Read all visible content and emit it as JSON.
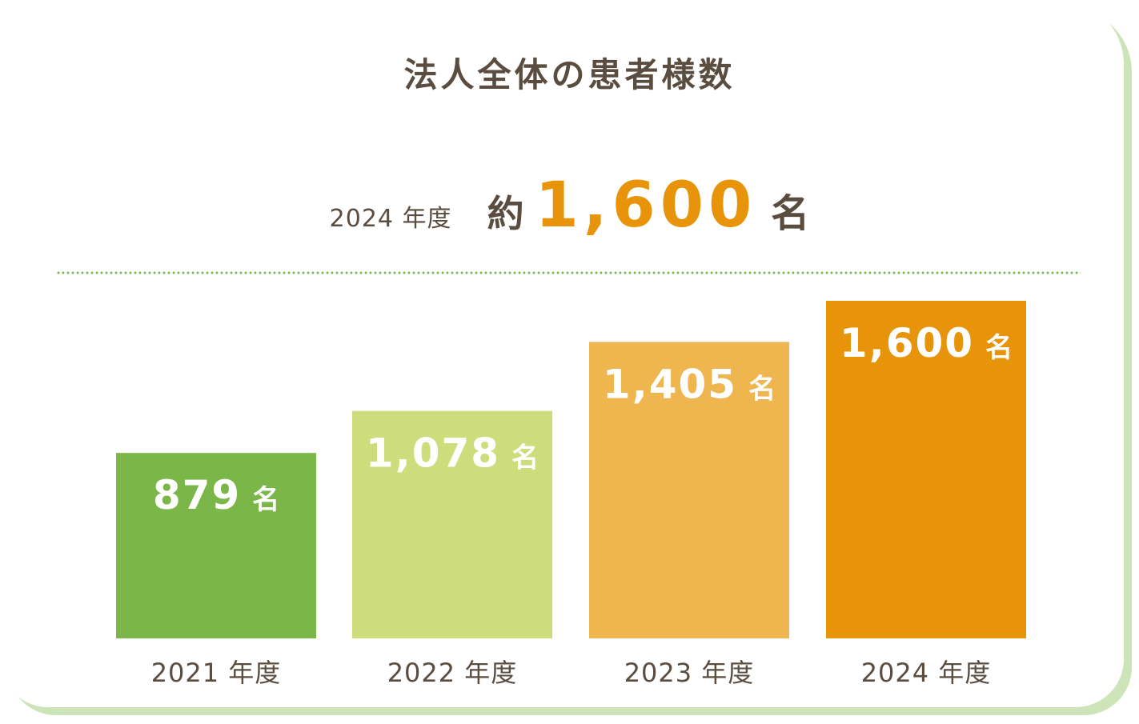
{
  "title": "法人全体の患者様数",
  "summary": {
    "year": "2024 年度",
    "approx": "約",
    "value": "1,600",
    "unit": "名"
  },
  "colors": {
    "bar_2021": "#7ab648",
    "bar_2022": "#cedd7b",
    "bar_2023": "#efb54f",
    "bar_2024": "#e8940a",
    "accent": "#e8940a",
    "text": "#5a4d3f",
    "dots": "#7ab648",
    "card_shadow": "#cde3b8"
  },
  "chart_data": {
    "type": "bar",
    "categories": [
      "2021 年度",
      "2022 年度",
      "2023 年度",
      "2024 年度"
    ],
    "values": [
      879,
      1078,
      1405,
      1600
    ],
    "value_labels": [
      "879",
      "1,078",
      "1,405",
      "1,600"
    ],
    "unit": "名",
    "title": "法人全体の患者様数",
    "xlabel": "",
    "ylabel": "",
    "grid": false,
    "legend": "none"
  }
}
